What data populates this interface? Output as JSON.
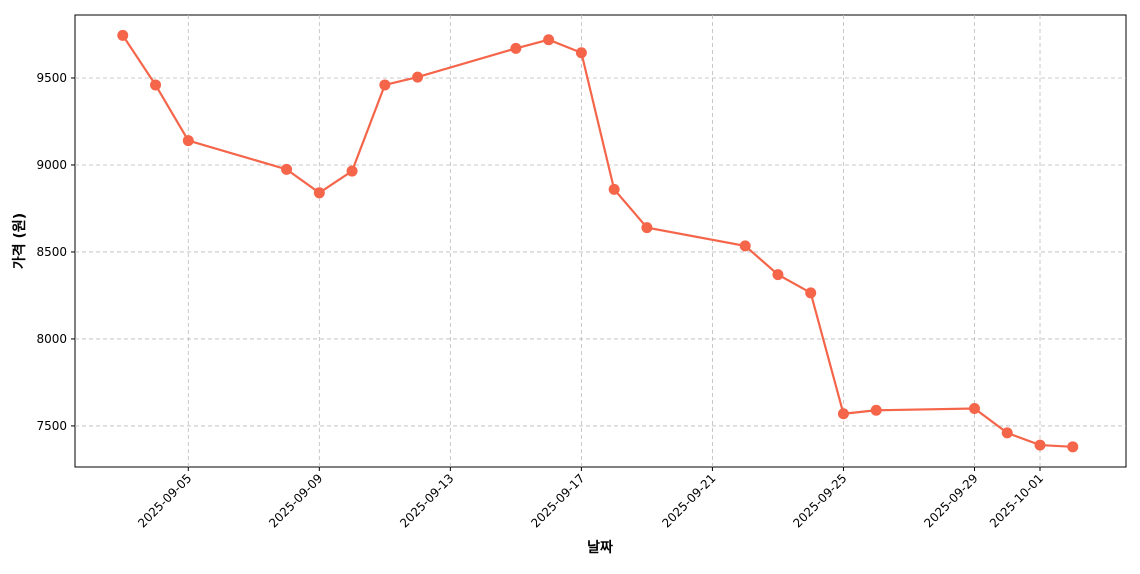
{
  "chart_data": {
    "type": "line",
    "x_label": "날짜",
    "y_label": "가격 (원)",
    "x": [
      "2025-09-03",
      "2025-09-04",
      "2025-09-05",
      "2025-09-08",
      "2025-09-09",
      "2025-09-10",
      "2025-09-11",
      "2025-09-12",
      "2025-09-15",
      "2025-09-16",
      "2025-09-17",
      "2025-09-18",
      "2025-09-19",
      "2025-09-22",
      "2025-09-23",
      "2025-09-24",
      "2025-09-25",
      "2025-09-26",
      "2025-09-29",
      "2025-09-30",
      "2025-10-01",
      "2025-10-02"
    ],
    "values": [
      9745,
      9460,
      9140,
      8975,
      8840,
      8965,
      9460,
      9505,
      9670,
      9720,
      9645,
      8860,
      8640,
      8535,
      8370,
      8265,
      7570,
      7590,
      7600,
      7460,
      7390,
      7380
    ],
    "color": "#f4654a",
    "xlim": [
      "2025-09-01T13:00",
      "2025-10-03T15:00"
    ],
    "xticks": [
      "2025-09-05",
      "2025-09-09",
      "2025-09-13",
      "2025-09-17",
      "2025-09-21",
      "2025-09-25",
      "2025-09-29",
      "2025-10-01"
    ],
    "ylim": [
      7264,
      9862
    ],
    "yticks": [
      7500,
      8000,
      8500,
      9000,
      9500
    ],
    "grid": true
  }
}
